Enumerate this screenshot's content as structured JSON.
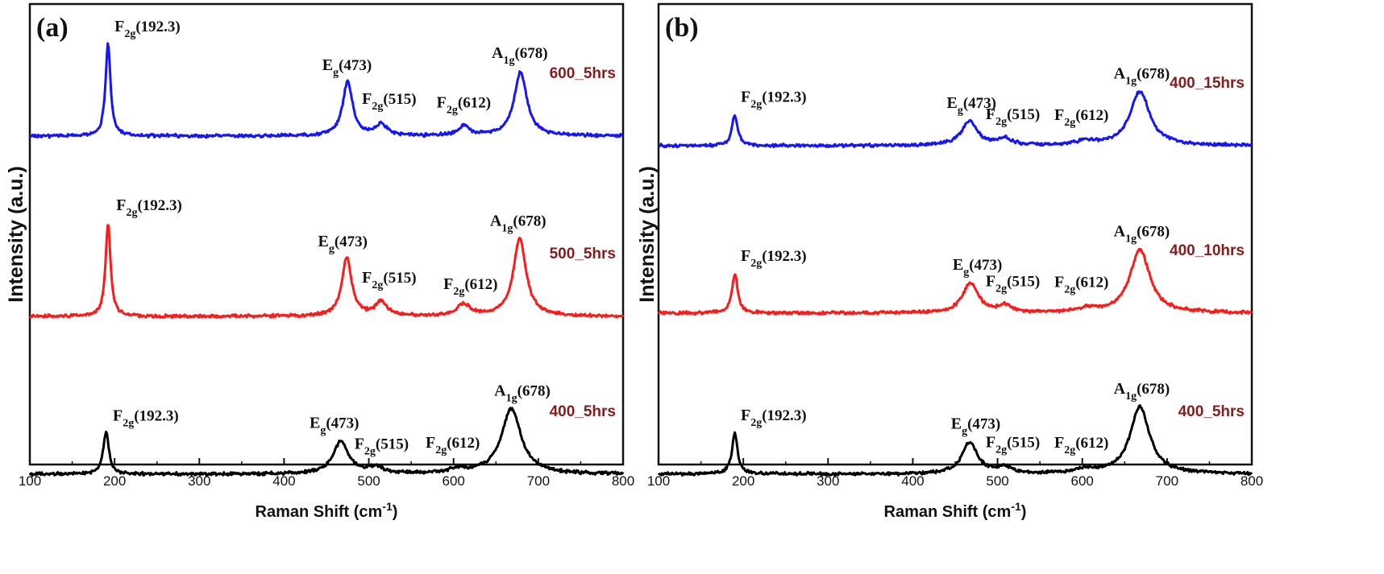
{
  "colors": {
    "blue": "#1414ff",
    "red": "#ff1a1a",
    "black": "#000000",
    "sample_label": "#8b1a1a"
  },
  "chart_data": [
    {
      "panel": "(a)",
      "type": "line",
      "xlabel": "Raman Shift (cm",
      "xlabel_sup": "-1",
      "xlabel_end": ")",
      "ylabel": "Intensity (a.u.)",
      "xlim": [
        100,
        800
      ],
      "xticks": [
        "100",
        "200",
        "300",
        "400",
        "500",
        "600",
        "700",
        "800"
      ],
      "series": [
        {
          "name": "600_5hrs",
          "color": "#1414ff",
          "baseline": 0.82,
          "scale": 0.58,
          "peaks": [
            {
              "pos": 192.3,
              "height": 1.0,
              "width": 3.5
            },
            {
              "pos": 475,
              "height": 0.58,
              "width": 7
            },
            {
              "pos": 515,
              "height": 0.12,
              "width": 8
            },
            {
              "pos": 612,
              "height": 0.1,
              "width": 8
            },
            {
              "pos": 679,
              "height": 0.68,
              "width": 9
            }
          ],
          "annotations": [
            {
              "main": "F",
              "sub": "2g",
              "tail": "(192.3)",
              "x": 200,
              "dy": 0.05
            },
            {
              "main": "E",
              "sub": "g",
              "tail": "(473)",
              "x": 445,
              "dy": 0.05
            },
            {
              "main": "F",
              "sub": "2g",
              "tail": "(515)",
              "x": 492,
              "dy": 0.1
            },
            {
              "main": "F",
              "sub": "2g",
              "tail": "(612)",
              "x": 580,
              "dy": 0.09
            },
            {
              "main": "A",
              "sub": "1g",
              "tail": "(678)",
              "x": 645,
              "dy": 0.07
            }
          ]
        },
        {
          "name": "500_5hrs",
          "color": "#ff1a1a",
          "baseline": 1.94,
          "scale": 0.58,
          "peaks": [
            {
              "pos": 192.3,
              "height": 1.0,
              "width": 3.5
            },
            {
              "pos": 474,
              "height": 0.62,
              "width": 7
            },
            {
              "pos": 515,
              "height": 0.15,
              "width": 8
            },
            {
              "pos": 612,
              "height": 0.12,
              "width": 10
            },
            {
              "pos": 678,
              "height": 0.83,
              "width": 9
            }
          ],
          "annotations": [
            {
              "main": "F",
              "sub": "2g",
              "tail": "(192.3)",
              "x": 202,
              "dy": 0.06
            },
            {
              "main": "E",
              "sub": "g",
              "tail": "(473)",
              "x": 440,
              "dy": 0.05
            },
            {
              "main": "F",
              "sub": "2g",
              "tail": "(515)",
              "x": 492,
              "dy": 0.09
            },
            {
              "main": "F",
              "sub": "2g",
              "tail": "(612)",
              "x": 588,
              "dy": 0.07
            },
            {
              "main": "A",
              "sub": "1g",
              "tail": "(678)",
              "x": 643,
              "dy": 0.06
            }
          ]
        },
        {
          "name": "400_5hrs",
          "color": "#000000",
          "baseline": 2.92,
          "scale": 0.58,
          "peaks": [
            {
              "pos": 190,
              "height": 0.45,
              "width": 4
            },
            {
              "pos": 467,
              "height": 0.35,
              "width": 11
            },
            {
              "pos": 508,
              "height": 0.07,
              "width": 10
            },
            {
              "pos": 605,
              "height": 0.04,
              "width": 15
            },
            {
              "pos": 668,
              "height": 0.7,
              "width": 14
            }
          ],
          "annotations": [
            {
              "main": "F",
              "sub": "2g",
              "tail": "(192.3)",
              "x": 198,
              "dy": 0.05
            },
            {
              "main": "E",
              "sub": "g",
              "tail": "(473)",
              "x": 430,
              "dy": 0.06
            },
            {
              "main": "F",
              "sub": "2g",
              "tail": "(515)",
              "x": 483,
              "dy": 0.08
            },
            {
              "main": "F",
              "sub": "2g",
              "tail": "(612)",
              "x": 567,
              "dy": 0.1
            },
            {
              "main": "A",
              "sub": "1g",
              "tail": "(678)",
              "x": 648,
              "dy": 0.06
            }
          ]
        }
      ]
    },
    {
      "panel": "(b)",
      "type": "line",
      "xlabel": "Raman Shift (cm",
      "xlabel_sup": "-1",
      "xlabel_end": ")",
      "ylabel": "Intensity (a.u.)",
      "xlim": [
        100,
        800
      ],
      "xticks": [
        "100",
        "200",
        "300",
        "400",
        "500",
        "600",
        "700",
        "800"
      ],
      "series": [
        {
          "name": "400_15hrs",
          "color": "#1414ff",
          "baseline": 0.88,
          "scale": 0.58,
          "peaks": [
            {
              "pos": 190,
              "height": 0.33,
              "width": 4
            },
            {
              "pos": 467,
              "height": 0.26,
              "width": 11
            },
            {
              "pos": 508,
              "height": 0.07,
              "width": 10
            },
            {
              "pos": 605,
              "height": 0.04,
              "width": 15
            },
            {
              "pos": 668,
              "height": 0.58,
              "width": 14
            }
          ],
          "annotations": [
            {
              "main": "F",
              "sub": "2g",
              "tail": "(192.3)",
              "x": 197,
              "dy": 0.06
            },
            {
              "main": "E",
              "sub": "g",
              "tail": "(473)",
              "x": 440,
              "dy": 0.06
            },
            {
              "main": "F",
              "sub": "2g",
              "tail": "(515)",
              "x": 486,
              "dy": 0.09
            },
            {
              "main": "F",
              "sub": "2g",
              "tail": "(612)",
              "x": 567,
              "dy": 0.1
            },
            {
              "main": "A",
              "sub": "1g",
              "tail": "(678)",
              "x": 637,
              "dy": 0.06
            }
          ]
        },
        {
          "name": "400_10hrs",
          "color": "#ff1a1a",
          "baseline": 1.92,
          "scale": 0.58,
          "peaks": [
            {
              "pos": 190,
              "height": 0.42,
              "width": 4
            },
            {
              "pos": 468,
              "height": 0.32,
              "width": 11
            },
            {
              "pos": 508,
              "height": 0.07,
              "width": 10
            },
            {
              "pos": 605,
              "height": 0.04,
              "width": 15
            },
            {
              "pos": 668,
              "height": 0.68,
              "width": 14
            }
          ],
          "annotations": [
            {
              "main": "F",
              "sub": "2g",
              "tail": "(192.3)",
              "x": 197,
              "dy": 0.06
            },
            {
              "main": "E",
              "sub": "g",
              "tail": "(473)",
              "x": 447,
              "dy": 0.06
            },
            {
              "main": "F",
              "sub": "2g",
              "tail": "(515)",
              "x": 486,
              "dy": 0.09
            },
            {
              "main": "F",
              "sub": "2g",
              "tail": "(612)",
              "x": 567,
              "dy": 0.1
            },
            {
              "main": "A",
              "sub": "1g",
              "tail": "(678)",
              "x": 637,
              "dy": 0.06
            }
          ]
        },
        {
          "name": "400_5hrs",
          "color": "#000000",
          "baseline": 2.92,
          "scale": 0.58,
          "peaks": [
            {
              "pos": 190,
              "height": 0.44,
              "width": 4
            },
            {
              "pos": 467,
              "height": 0.34,
              "width": 11
            },
            {
              "pos": 508,
              "height": 0.07,
              "width": 10
            },
            {
              "pos": 605,
              "height": 0.04,
              "width": 15
            },
            {
              "pos": 668,
              "height": 0.72,
              "width": 14
            }
          ],
          "annotations": [
            {
              "main": "F",
              "sub": "2g",
              "tail": "(192.3)",
              "x": 197,
              "dy": 0.06
            },
            {
              "main": "E",
              "sub": "g",
              "tail": "(473)",
              "x": 445,
              "dy": 0.06
            },
            {
              "main": "F",
              "sub": "2g",
              "tail": "(515)",
              "x": 486,
              "dy": 0.09
            },
            {
              "main": "F",
              "sub": "2g",
              "tail": "(612)",
              "x": 567,
              "dy": 0.1
            },
            {
              "main": "A",
              "sub": "1g",
              "tail": "(678)",
              "x": 637,
              "dy": 0.06
            }
          ]
        }
      ]
    }
  ]
}
